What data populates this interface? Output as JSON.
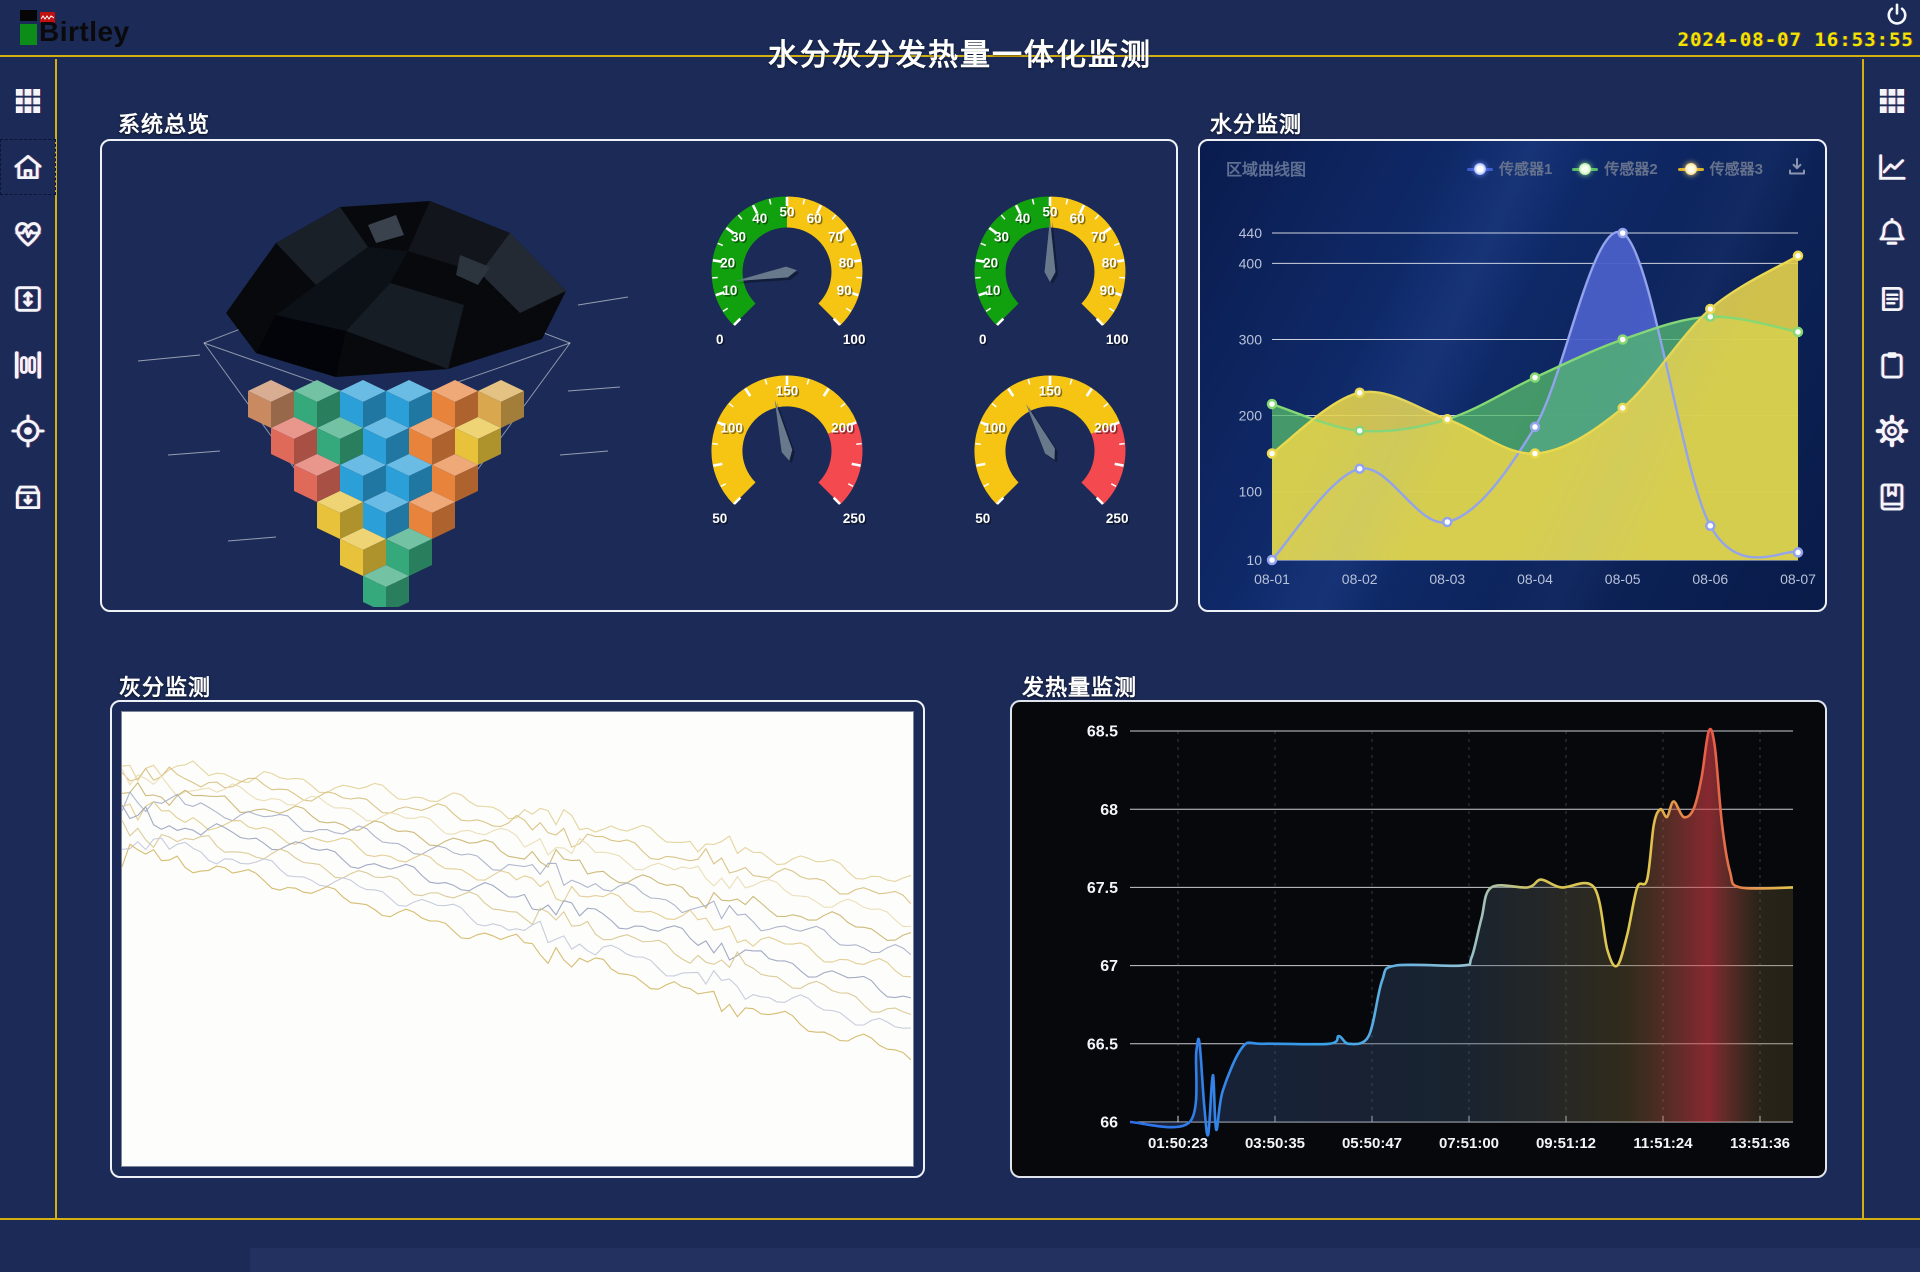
{
  "header": {
    "logo": {
      "text": "Birtley"
    },
    "title": "水分灰分发热量一体化监测",
    "datetime": "2024-08-07 16:53:55"
  },
  "left_sidebar": {
    "items": [
      {
        "icon": "grid-icon"
      },
      {
        "icon": "home-icon",
        "selected": true
      },
      {
        "icon": "heart-pulse-icon"
      },
      {
        "icon": "vertical-resize-icon"
      },
      {
        "icon": "ruler-icon"
      },
      {
        "icon": "target-icon"
      },
      {
        "icon": "archive-download-icon"
      }
    ]
  },
  "right_sidebar": {
    "items": [
      {
        "icon": "grid-icon"
      },
      {
        "icon": "line-chart-icon"
      },
      {
        "icon": "bell-icon"
      },
      {
        "icon": "document-icon"
      },
      {
        "icon": "clipboard-icon"
      },
      {
        "icon": "gear-icon"
      },
      {
        "icon": "bookmark-book-icon"
      }
    ]
  },
  "panels": {
    "overview": {
      "title": "系统总览",
      "illustration": "coal-3d-voxel-model",
      "voxel_rows": [
        [
          "#c98a62",
          "#35a87c",
          "#2b9fd8",
          "#2b9fd8",
          "#e8833c",
          "#d9a84e"
        ],
        [
          "#e06a5a",
          "#35a87c",
          "#2b9fd8",
          "#e8833c",
          "#e8c23a"
        ],
        [
          "#e06a5a",
          "#2b9fd8",
          "#2b9fd8",
          "#e8833c"
        ],
        [
          "#e8c23a",
          "#2b9fd8",
          "#e8833c"
        ],
        [
          "#e8c23a",
          "#35a87c"
        ],
        [
          "#35a87c"
        ]
      ]
    },
    "moisture": {
      "title": "水分监测",
      "chart_title": "区域曲线图",
      "legend": [
        {
          "label": "传感器1",
          "color": "#3d5bd0"
        },
        {
          "label": "传感器2",
          "color": "#58b868"
        },
        {
          "label": "传感器3",
          "color": "#d8ae26"
        }
      ],
      "download_icon": "download-icon"
    },
    "ash": {
      "title": "灰分监测"
    },
    "calorific": {
      "title": "发热量监测"
    }
  },
  "chart_data": [
    {
      "id": "gauge1",
      "type": "gauge",
      "min": 0,
      "max": 100,
      "value": 13,
      "tick_minor": 5,
      "tick_major": 10,
      "label_step": 10,
      "zones": [
        {
          "from": 0,
          "to": 50,
          "color": "#12a10e"
        },
        {
          "from": 50,
          "to": 100,
          "color": "#f6c514"
        }
      ]
    },
    {
      "id": "gauge2",
      "type": "gauge",
      "min": 0,
      "max": 100,
      "value": 50,
      "tick_minor": 5,
      "tick_major": 10,
      "label_step": 10,
      "zones": [
        {
          "from": 0,
          "to": 50,
          "color": "#12a10e"
        },
        {
          "from": 50,
          "to": 100,
          "color": "#f6c514"
        }
      ]
    },
    {
      "id": "gauge3",
      "type": "gauge",
      "min": 50,
      "max": 250,
      "value": 140,
      "tick_minor": 12.5,
      "tick_major": 25,
      "label_step": 50,
      "zones": [
        {
          "from": 50,
          "to": 200,
          "color": "#f6c514"
        },
        {
          "from": 200,
          "to": 250,
          "color": "#f4494f"
        }
      ]
    },
    {
      "id": "gauge4",
      "type": "gauge",
      "min": 50,
      "max": 250,
      "value": 130,
      "tick_minor": 12.5,
      "tick_major": 25,
      "label_step": 50,
      "zones": [
        {
          "from": 50,
          "to": 200,
          "color": "#f6c514"
        },
        {
          "from": 200,
          "to": 250,
          "color": "#f4494f"
        }
      ]
    },
    {
      "id": "moisture",
      "type": "area",
      "title": "区域曲线图",
      "categories": [
        "08-01",
        "08-02",
        "08-03",
        "08-04",
        "08-05",
        "08-06",
        "08-07"
      ],
      "ylim": [
        10,
        440
      ],
      "yticks": [
        10,
        100,
        200,
        300,
        400,
        440
      ],
      "grid": true,
      "legend_position": "top-right",
      "series": [
        {
          "name": "传感器1",
          "color": "#93a3ec",
          "fill": "#4a5fc8",
          "fill_opacity": 0.95,
          "values": [
            10,
            130,
            60,
            185,
            440,
            55,
            20
          ]
        },
        {
          "name": "传感器2",
          "color": "#86d873",
          "fill": "#53b86a",
          "fill_opacity": 0.78,
          "values": [
            215,
            180,
            195,
            250,
            300,
            330,
            310
          ]
        },
        {
          "name": "传感器3",
          "color": "#ead94f",
          "fill": "#e6d34b",
          "fill_opacity": 0.9,
          "values": [
            150,
            230,
            195,
            150,
            210,
            340,
            410
          ]
        }
      ]
    },
    {
      "id": "ash",
      "type": "multiline",
      "background": "#fdfdfc",
      "x_percent": [
        0,
        10,
        20,
        30,
        40,
        50,
        60,
        70,
        80,
        90,
        100
      ],
      "series": [
        {
          "color": "#e2d096",
          "values_pct_from_top": [
            12,
            13,
            15,
            17,
            19,
            22,
            25,
            28,
            31,
            34,
            38
          ]
        },
        {
          "color": "#d6bf7c",
          "values_pct_from_top": [
            14,
            15,
            17,
            20,
            22,
            25,
            28,
            32,
            35,
            38,
            42
          ]
        },
        {
          "color": "#e9dcb0",
          "values_pct_from_top": [
            15,
            17,
            19,
            22,
            25,
            28,
            31,
            35,
            38,
            42,
            46
          ]
        },
        {
          "color": "#c9b46e",
          "values_pct_from_top": [
            17,
            19,
            22,
            25,
            28,
            31,
            35,
            39,
            43,
            46,
            50
          ]
        },
        {
          "color": "#a6aec6",
          "values_pct_from_top": [
            19,
            21,
            24,
            27,
            31,
            34,
            38,
            42,
            46,
            50,
            54
          ]
        },
        {
          "color": "#e0ca89",
          "values_pct_from_top": [
            21,
            24,
            27,
            30,
            34,
            37,
            41,
            45,
            50,
            54,
            58
          ]
        },
        {
          "color": "#98a2bd",
          "values_pct_from_top": [
            23,
            26,
            29,
            33,
            37,
            41,
            45,
            49,
            54,
            58,
            63
          ]
        },
        {
          "color": "#d8c78f",
          "values_pct_from_top": [
            26,
            29,
            32,
            36,
            40,
            44,
            48,
            53,
            57,
            62,
            67
          ]
        },
        {
          "color": "#c2c8d8",
          "values_pct_from_top": [
            28,
            31,
            35,
            39,
            43,
            48,
            52,
            57,
            62,
            66,
            71
          ]
        },
        {
          "color": "#d2b662",
          "values_pct_from_top": [
            31,
            34,
            38,
            42,
            47,
            51,
            56,
            61,
            66,
            71,
            76
          ]
        }
      ]
    },
    {
      "id": "calorific",
      "type": "line",
      "background": "#06080c",
      "ylim": [
        66,
        68.5
      ],
      "yticks": [
        66,
        66.5,
        67,
        67.5,
        68,
        68.5
      ],
      "xticklabels": [
        "01:50:23",
        "03:50:35",
        "05:50:47",
        "07:51:00",
        "09:51:12",
        "11:51:24",
        "13:51:36"
      ],
      "line_gradient": [
        "#2e6ee8",
        "#3aa2e8",
        "#8fc0d8",
        "#d8c455",
        "#e0c84e",
        "#e85848",
        "#e0c84e"
      ],
      "peak_color": "#e85848",
      "points": [
        [
          0,
          66
        ],
        [
          0.09,
          66
        ],
        [
          0.1,
          66.45
        ],
        [
          0.105,
          66.5
        ],
        [
          0.112,
          66.1
        ],
        [
          0.118,
          65.92
        ],
        [
          0.125,
          66.3
        ],
        [
          0.13,
          65.95
        ],
        [
          0.14,
          66.2
        ],
        [
          0.17,
          66.48
        ],
        [
          0.2,
          66.5
        ],
        [
          0.3,
          66.5
        ],
        [
          0.315,
          66.55
        ],
        [
          0.33,
          66.5
        ],
        [
          0.36,
          66.55
        ],
        [
          0.38,
          66.9
        ],
        [
          0.4,
          67
        ],
        [
          0.5,
          67
        ],
        [
          0.515,
          67.05
        ],
        [
          0.53,
          67.3
        ],
        [
          0.545,
          67.5
        ],
        [
          0.6,
          67.5
        ],
        [
          0.62,
          67.55
        ],
        [
          0.65,
          67.5
        ],
        [
          0.7,
          67.5
        ],
        [
          0.72,
          67.1
        ],
        [
          0.735,
          67.0
        ],
        [
          0.75,
          67.2
        ],
        [
          0.765,
          67.5
        ],
        [
          0.78,
          67.55
        ],
        [
          0.79,
          67.9
        ],
        [
          0.8,
          68.0
        ],
        [
          0.81,
          67.95
        ],
        [
          0.82,
          68.05
        ],
        [
          0.835,
          67.95
        ],
        [
          0.85,
          68.0
        ],
        [
          0.862,
          68.2
        ],
        [
          0.873,
          68.5
        ],
        [
          0.882,
          68.4
        ],
        [
          0.893,
          67.9
        ],
        [
          0.905,
          67.6
        ],
        [
          0.92,
          67.5
        ],
        [
          1,
          67.5
        ]
      ]
    }
  ]
}
